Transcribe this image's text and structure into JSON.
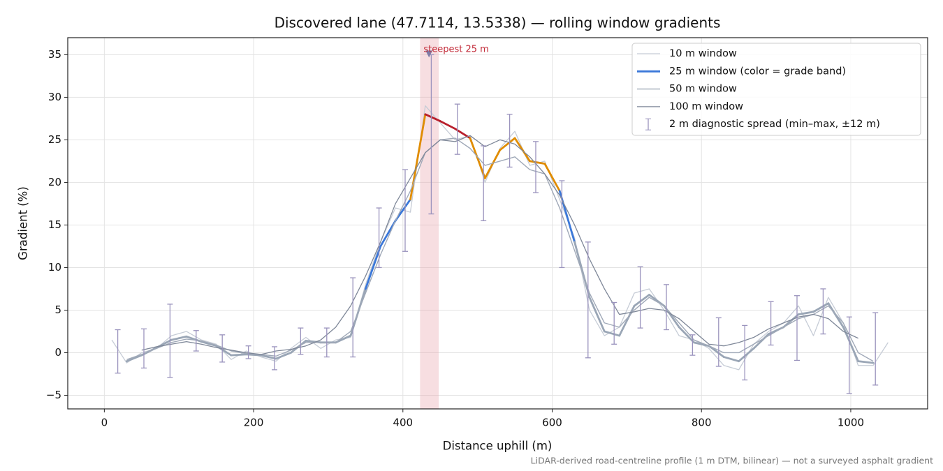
{
  "chart_data": {
    "type": "line",
    "title": "Discovered lane (47.7114, 13.5338) — rolling window gradients",
    "xlabel": "Distance uphill (m)",
    "ylabel": "Gradient (%)",
    "footnote": "LiDAR-derived road-centreline profile (1 m DTM, bilinear) — not a surveyed asphalt gradient",
    "xlim": [
      -49,
      1103
    ],
    "ylim": [
      -6.6,
      37
    ],
    "xticks": [
      0,
      200,
      400,
      600,
      800,
      1000
    ],
    "yticks": [
      {
        "value": -5,
        "label": "−5"
      },
      0,
      5,
      10,
      15,
      20,
      25,
      30,
      35
    ],
    "grid": true,
    "legend": "upper right",
    "x": [
      10,
      30,
      50,
      70,
      90,
      110,
      130,
      150,
      170,
      190,
      210,
      230,
      250,
      270,
      290,
      310,
      330,
      350,
      370,
      390,
      410,
      430,
      450,
      470,
      490,
      510,
      530,
      550,
      570,
      590,
      610,
      630,
      650,
      670,
      690,
      710,
      730,
      750,
      770,
      790,
      810,
      830,
      850,
      870,
      890,
      910,
      930,
      950,
      970,
      990,
      1010,
      1030,
      1050
    ],
    "series": [
      {
        "name": "10 m window",
        "color": "#c6ccd6",
        "width": 1.3,
        "values": [
          1.5,
          -1.2,
          0.0,
          0.5,
          2.0,
          2.5,
          1.5,
          1.0,
          -0.8,
          0.2,
          -0.5,
          -1.0,
          0.5,
          1.8,
          0.5,
          1.5,
          1.8,
          8.0,
          13.0,
          17.0,
          16.5,
          29.0,
          27.0,
          25.0,
          25.5,
          20.0,
          24.0,
          26.0,
          22.0,
          22.5,
          18.0,
          13.5,
          5.0,
          2.0,
          3.0,
          7.0,
          7.5,
          5.0,
          2.0,
          1.5,
          0.5,
          -1.5,
          -2.0,
          1.0,
          2.5,
          3.5,
          5.5,
          2.0,
          6.5,
          3.5,
          -1.5,
          -1.5,
          1.2
        ]
      },
      {
        "name": "25 m window (color = grade band)",
        "color": "#9aa6b6",
        "width": 2.8,
        "grade_bands": [
          {
            "min": 10,
            "color": "#3b78d9"
          },
          {
            "min": 20,
            "color": "#e08c00"
          },
          {
            "min": 25,
            "color": "#b81f2c"
          }
        ],
        "values": [
          null,
          -1.0,
          -0.3,
          0.6,
          1.5,
          1.9,
          1.3,
          0.8,
          -0.3,
          -0.2,
          -0.3,
          -0.7,
          0.0,
          1.4,
          1.2,
          1.2,
          2.0,
          7.5,
          12.5,
          15.5,
          18.0,
          28.0,
          27.2,
          26.3,
          25.2,
          20.5,
          23.8,
          25.2,
          22.5,
          22.2,
          19.0,
          13.0,
          6.5,
          2.5,
          2.0,
          5.5,
          6.8,
          5.5,
          3.0,
          1.2,
          0.8,
          -0.5,
          -1.0,
          0.5,
          2.2,
          3.0,
          4.5,
          4.8,
          5.8,
          3.0,
          -1.0,
          -1.2,
          null
        ]
      },
      {
        "name": "50 m window",
        "color": "#a0a9b8",
        "width": 1.4,
        "values": [
          null,
          -0.8,
          -0.2,
          0.5,
          1.2,
          1.6,
          1.4,
          0.9,
          0.2,
          -0.1,
          -0.2,
          -0.4,
          0.3,
          1.2,
          1.2,
          1.2,
          2.5,
          7.0,
          11.5,
          15.5,
          19.0,
          23.5,
          25.0,
          25.2,
          24.0,
          22.0,
          22.5,
          23.0,
          21.5,
          21.0,
          17.0,
          12.0,
          7.0,
          3.5,
          3.0,
          5.0,
          6.5,
          5.5,
          3.5,
          1.5,
          0.8,
          0.0,
          0.0,
          1.0,
          2.0,
          3.0,
          4.0,
          4.5,
          5.5,
          3.5,
          0.0,
          -1.0,
          null
        ]
      },
      {
        "name": "100 m window",
        "color": "#7e8798",
        "width": 1.3,
        "values": [
          null,
          null,
          0.3,
          0.7,
          1.0,
          1.3,
          1.0,
          0.6,
          0.3,
          0.0,
          -0.2,
          0.2,
          0.4,
          0.8,
          1.5,
          3.0,
          5.5,
          9.0,
          13.0,
          17.5,
          20.5,
          23.5,
          25.0,
          24.8,
          25.5,
          24.2,
          25.0,
          24.5,
          23.0,
          21.0,
          18.5,
          15.0,
          11.0,
          7.5,
          4.5,
          4.8,
          5.2,
          5.0,
          4.0,
          2.5,
          1.0,
          0.8,
          1.2,
          1.8,
          2.8,
          3.5,
          4.2,
          4.5,
          4.0,
          2.5,
          1.7,
          null,
          null
        ]
      }
    ],
    "errorbars": {
      "name": "2 m diagnostic spread (min–max, ±12 m)",
      "color": "#9a93bd",
      "x": [
        18,
        53,
        88,
        123,
        158,
        193,
        228,
        263,
        298,
        333,
        368,
        403,
        438,
        473,
        508,
        543,
        578,
        613,
        648,
        683,
        718,
        753,
        788,
        823,
        858,
        893,
        928,
        963,
        998,
        1033
      ],
      "low": [
        -2.4,
        -1.8,
        -2.9,
        0.2,
        -1.1,
        -0.7,
        -2.0,
        -0.2,
        -0.5,
        -0.5,
        10.0,
        11.9,
        16.3,
        23.3,
        15.5,
        21.8,
        18.8,
        10.0,
        -0.6,
        1.0,
        2.9,
        2.7,
        -0.3,
        -1.6,
        -3.2,
        0.9,
        -0.9,
        2.2,
        -4.8,
        -3.8
      ],
      "high": [
        2.7,
        2.8,
        5.7,
        2.6,
        2.1,
        0.8,
        0.7,
        2.9,
        2.9,
        8.8,
        17.0,
        21.5,
        35.0,
        29.2,
        24.3,
        28.0,
        24.8,
        20.2,
        13.0,
        5.9,
        10.1,
        8.0,
        2.1,
        4.1,
        3.2,
        6.0,
        6.7,
        7.5,
        4.2,
        4.7
      ]
    },
    "highlight": {
      "x": [
        423,
        448
      ],
      "color": "#e7a0a8",
      "label": "steepest 25 m",
      "label_color": "#c22a38",
      "marker": [
        435,
        35
      ]
    }
  }
}
